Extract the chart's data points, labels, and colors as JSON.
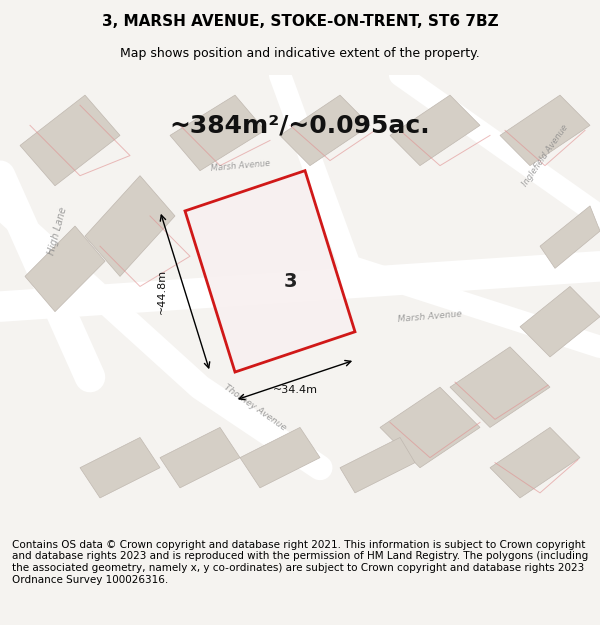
{
  "title": "3, MARSH AVENUE, STOKE-ON-TRENT, ST6 7BZ",
  "subtitle": "Map shows position and indicative extent of the property.",
  "area_text": "~384m²/~0.095ac.",
  "dim_width": "~34.4m",
  "dim_height": "~44.8m",
  "plot_number": "3",
  "footer": "Contains OS data © Crown copyright and database right 2021. This information is subject to Crown copyright and database rights 2023 and is reproduced with the permission of HM Land Registry. The polygons (including the associated geometry, namely x, y co-ordinates) are subject to Crown copyright and database rights 2023 Ordnance Survey 100026316.",
  "bg_color": "#f0eeea",
  "map_bg": "#e8e4de",
  "road_color": "#ffffff",
  "building_color": "#d8d0c8",
  "plot_fill": "none",
  "plot_edge": "#cc0000",
  "street_label_color": "#888888",
  "footer_bg": "#ffffff",
  "title_fontsize": 11,
  "subtitle_fontsize": 9,
  "area_fontsize": 18,
  "footer_fontsize": 7.5
}
